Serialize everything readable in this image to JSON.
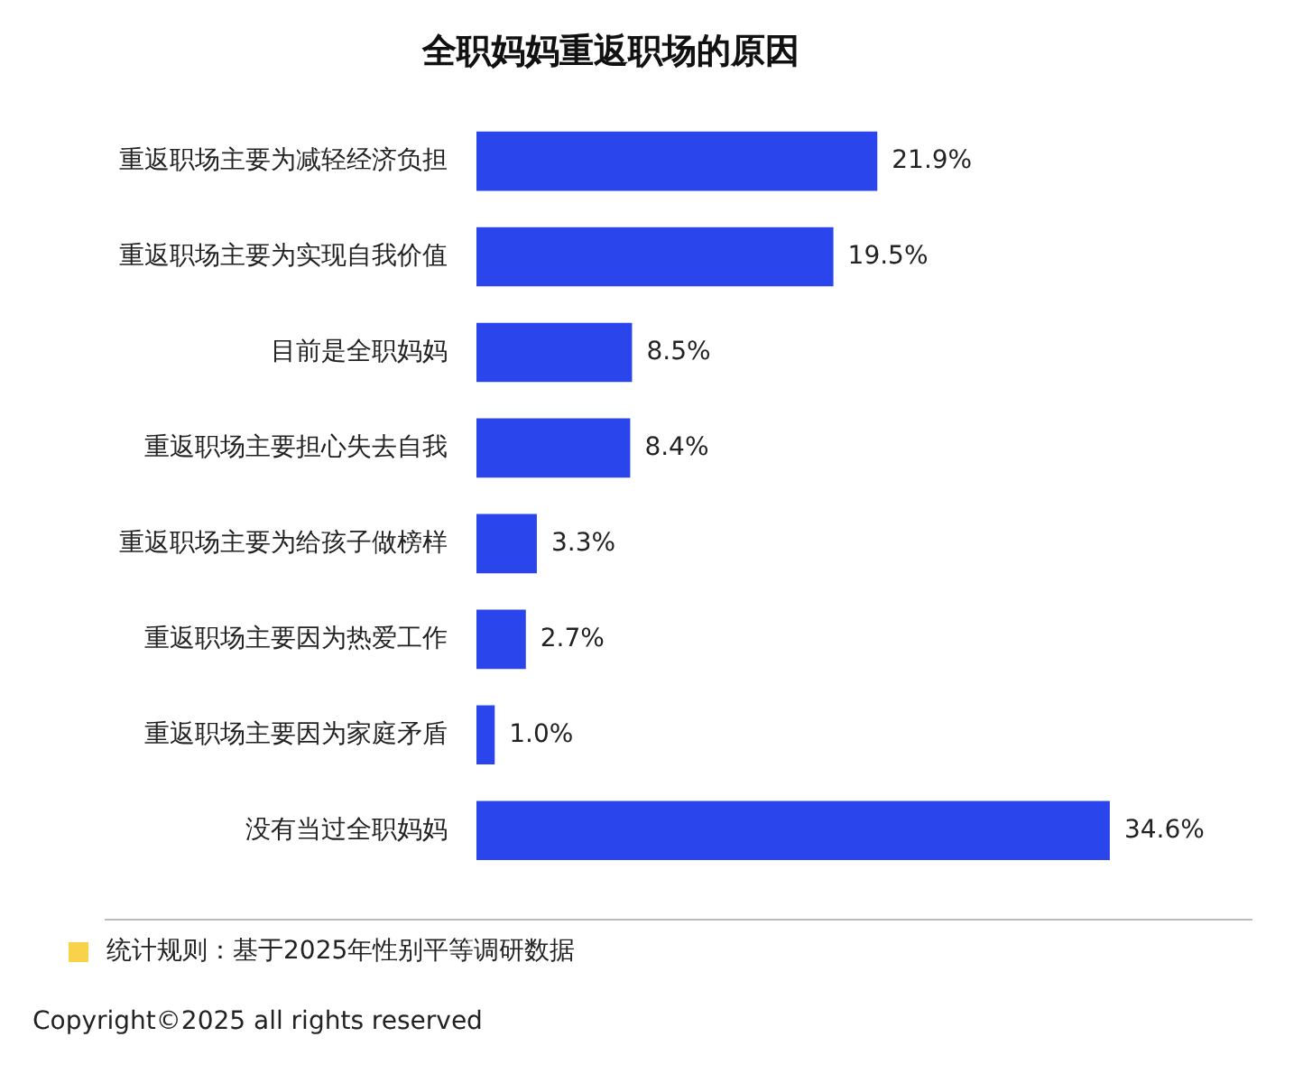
{
  "chart_data": {
    "type": "bar",
    "orientation": "horizontal",
    "title": "全职妈妈重返职场的原因",
    "categories": [
      "重返职场主要为减轻经济负担",
      "重返职场主要为实现自我价值",
      "目前是全职妈妈",
      "重返职场主要担心失去自我",
      "重返职场主要为给孩子做榜样",
      "重返职场主要因为热爱工作",
      "重返职场主要因为家庭矛盾",
      "没有当过全职妈妈"
    ],
    "values": [
      21.9,
      19.5,
      8.5,
      8.4,
      3.3,
      2.7,
      1.0,
      34.6
    ],
    "value_labels": [
      "21.9%",
      "19.5%",
      "8.5%",
      "8.4%",
      "3.3%",
      "2.7%",
      "1.0%",
      "34.6%"
    ],
    "color": "#2b45ec",
    "legend": false,
    "tick_labels": "y",
    "annotations": [
      "统计规则：基于2025年性别平等调研数据",
      "Copyright©2025 all rights reserved"
    ]
  }
}
